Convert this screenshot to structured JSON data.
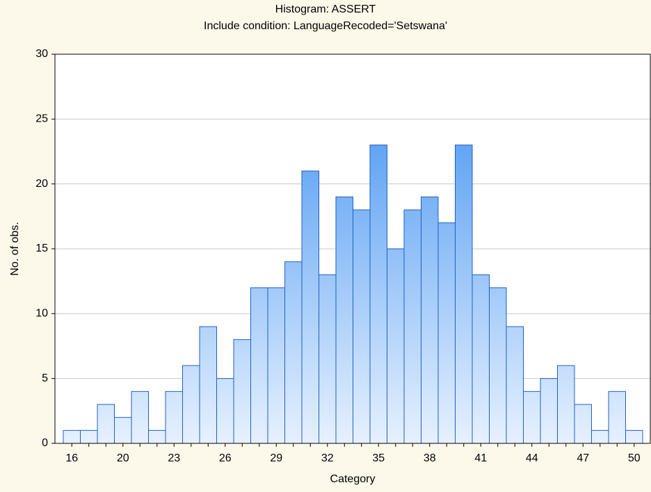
{
  "chart_data": {
    "type": "bar",
    "title": "Histogram: ASSERT",
    "subtitle": "Include condition: LanguageRecoded='Setswana'",
    "x_label": "Category",
    "y_label": "No. of obs.",
    "categories": [
      "16",
      null,
      null,
      "20",
      null,
      null,
      "23",
      null,
      null,
      "26",
      null,
      null,
      "29",
      null,
      null,
      "32",
      null,
      null,
      "35",
      null,
      null,
      "38",
      null,
      null,
      "41",
      null,
      null,
      "44",
      null,
      null,
      "47",
      null,
      null,
      "50"
    ],
    "values": [
      1,
      1,
      3,
      2,
      4,
      1,
      4,
      6,
      9,
      5,
      8,
      12,
      12,
      14,
      21,
      13,
      19,
      18,
      23,
      15,
      18,
      19,
      17,
      23,
      13,
      12,
      9,
      4,
      5,
      6,
      3,
      1,
      4,
      1
    ],
    "color": "#3a8ef0",
    "ylim": [
      0,
      30
    ],
    "yticks": [
      0,
      5,
      10,
      15,
      20,
      25,
      30
    ],
    "grid": true
  }
}
